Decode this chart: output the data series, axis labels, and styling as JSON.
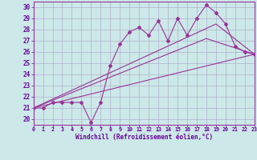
{
  "xlabel": "Windchill (Refroidissement éolien,°C)",
  "bg_color": "#cce8e8",
  "grid_color": "#b0b0cc",
  "line_color": "#993399",
  "text_color": "#660099",
  "xmin": 0,
  "xmax": 23,
  "ymin": 19.5,
  "ymax": 30.5,
  "yticks": [
    20,
    21,
    22,
    23,
    24,
    25,
    26,
    27,
    28,
    29,
    30
  ],
  "xticks": [
    0,
    1,
    2,
    3,
    4,
    5,
    6,
    7,
    8,
    9,
    10,
    11,
    12,
    13,
    14,
    15,
    16,
    17,
    18,
    19,
    20,
    21,
    22,
    23
  ],
  "series1_x": [
    0,
    1,
    2,
    3,
    4,
    5,
    6,
    7,
    8,
    9,
    10,
    11,
    12,
    13,
    14,
    15,
    16,
    17,
    18,
    19,
    20,
    21,
    22,
    23
  ],
  "series1_y": [
    21.0,
    21.0,
    21.5,
    21.5,
    21.5,
    21.5,
    19.7,
    21.5,
    24.8,
    26.7,
    27.8,
    28.2,
    27.5,
    28.8,
    27.0,
    29.0,
    27.5,
    29.0,
    30.2,
    29.5,
    28.5,
    26.5,
    26.0,
    25.8
  ],
  "series2_x": [
    0,
    23
  ],
  "series2_y": [
    21.0,
    25.8
  ],
  "series3_x": [
    0,
    18,
    23
  ],
  "series3_y": [
    21.0,
    27.2,
    25.8
  ],
  "series4_x": [
    0,
    19,
    23
  ],
  "series4_y": [
    21.0,
    28.5,
    25.8
  ]
}
